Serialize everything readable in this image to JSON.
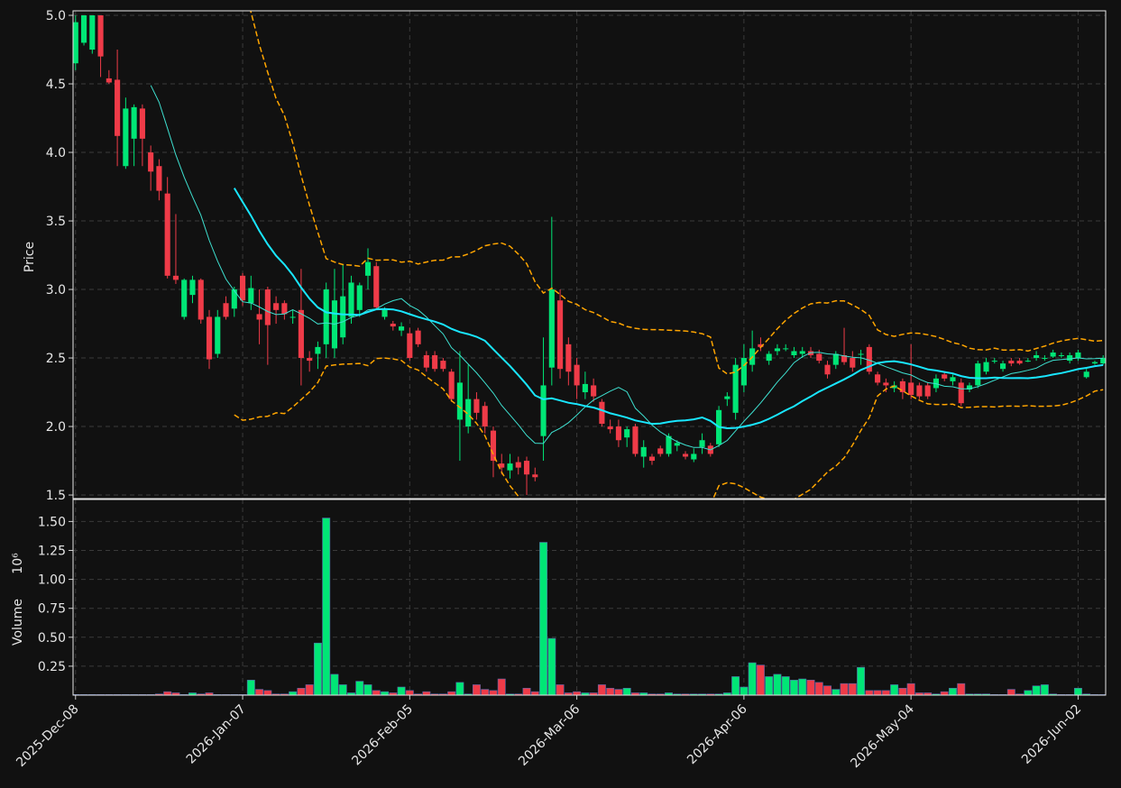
{
  "chart_data": {
    "type": "candlestick",
    "y_label": "Price",
    "y2_label": "Volume",
    "y2_scale_label": "10⁶",
    "up_color": "#00e676",
    "down_color": "#ef3b48",
    "grid": true,
    "xlim": [
      -0.3,
      123.3
    ],
    "ylim": [
      1.474,
      5.033
    ],
    "yticks": [
      1.5,
      {
        "value": 2,
        "label": "2.0"
      },
      2.5,
      {
        "value": 3,
        "label": "3.0"
      },
      3.5,
      {
        "value": 4,
        "label": "4.0"
      },
      4.5,
      {
        "value": 5,
        "label": "5.0"
      }
    ],
    "y2lim": [
      0,
      1.69
    ],
    "y2ticks": [
      0.25,
      {
        "value": 0.5,
        "label": "0.50"
      },
      0.75,
      {
        "value": 1,
        "label": "1.00"
      },
      1.25,
      {
        "value": 1.5,
        "label": "1.50"
      }
    ],
    "categories": [
      "2025-Dec-08",
      null,
      null,
      null,
      null,
      null,
      null,
      null,
      null,
      null,
      null,
      null,
      null,
      null,
      null,
      null,
      null,
      null,
      null,
      null,
      "2026-Jan-07",
      null,
      null,
      null,
      null,
      null,
      null,
      null,
      null,
      null,
      null,
      null,
      null,
      null,
      null,
      null,
      null,
      null,
      null,
      null,
      "2026-Feb-05",
      null,
      null,
      null,
      null,
      null,
      null,
      null,
      null,
      null,
      null,
      null,
      null,
      null,
      null,
      null,
      null,
      null,
      null,
      null,
      "2026-Mar-06",
      null,
      null,
      null,
      null,
      null,
      null,
      null,
      null,
      null,
      null,
      null,
      null,
      null,
      null,
      null,
      null,
      null,
      null,
      null,
      "2026-Apr-06",
      null,
      null,
      null,
      null,
      null,
      null,
      null,
      null,
      null,
      null,
      null,
      null,
      null,
      null,
      null,
      null,
      null,
      null,
      null,
      "2026-May-04",
      null,
      null,
      null,
      null,
      null,
      null,
      null,
      null,
      null,
      null,
      null,
      null,
      null,
      null,
      null,
      null,
      null,
      null,
      null,
      "2026-Jun-02",
      null,
      null,
      null
    ],
    "open": [
      4.65,
      4.8,
      4.75,
      5.0,
      4.54,
      4.53,
      3.9,
      4.1,
      4.32,
      4.0,
      3.9,
      3.7,
      3.1,
      2.8,
      2.96,
      3.07,
      2.8,
      2.53,
      2.9,
      2.86,
      3.1,
      2.9,
      2.82,
      3.0,
      2.9,
      2.9,
      2.8,
      2.85,
      2.5,
      2.53,
      2.6,
      2.57,
      2.65,
      2.8,
      2.85,
      3.1,
      3.17,
      2.8,
      2.75,
      2.7,
      2.68,
      2.7,
      2.52,
      2.52,
      2.48,
      2.4,
      2.05,
      2.0,
      2.2,
      2.15,
      1.97,
      1.73,
      1.68,
      1.74,
      1.75,
      1.65,
      1.93,
      2.43,
      2.92,
      2.6,
      2.45,
      2.25,
      2.3,
      2.18,
      2.0,
      2.0,
      1.92,
      2.0,
      1.78,
      1.78,
      1.84,
      1.8,
      1.86,
      1.8,
      1.76,
      1.85,
      1.86,
      1.87,
      2.2,
      2.1,
      2.3,
      2.45,
      2.6,
      2.48,
      2.55,
      2.57,
      2.52,
      2.53,
      2.55,
      2.53,
      2.45,
      2.45,
      2.52,
      2.5,
      2.53,
      2.58,
      2.38,
      2.32,
      2.28,
      2.33,
      2.32,
      2.3,
      2.3,
      2.28,
      2.38,
      2.33,
      2.32,
      2.27,
      2.3,
      2.4,
      2.48,
      2.42,
      2.48,
      2.48,
      2.48,
      2.5,
      2.5,
      2.51,
      2.52,
      2.48,
      2.5,
      2.36,
      2.46,
      2.46
    ],
    "high": [
      5.0,
      5.0,
      5.0,
      5.0,
      4.6,
      4.75,
      4.4,
      4.35,
      4.35,
      4.05,
      3.95,
      3.82,
      3.55,
      3.08,
      3.1,
      3.08,
      2.85,
      2.85,
      2.95,
      3.02,
      3.12,
      3.1,
      3.0,
      3.02,
      2.95,
      2.92,
      2.85,
      3.15,
      2.55,
      2.62,
      3.05,
      3.15,
      3.18,
      3.1,
      3.05,
      3.3,
      3.2,
      2.87,
      2.77,
      2.76,
      2.72,
      2.72,
      2.55,
      2.55,
      2.5,
      2.42,
      2.55,
      2.45,
      2.25,
      2.18,
      2.0,
      1.8,
      1.8,
      1.78,
      1.78,
      1.7,
      2.65,
      3.53,
      3.0,
      2.65,
      2.5,
      2.4,
      2.35,
      2.2,
      2.05,
      2.05,
      2.0,
      2.02,
      1.9,
      1.8,
      1.86,
      1.95,
      1.9,
      1.82,
      1.84,
      1.95,
      1.88,
      2.15,
      2.25,
      2.5,
      2.6,
      2.7,
      2.65,
      2.55,
      2.6,
      2.6,
      2.58,
      2.58,
      2.58,
      2.56,
      2.48,
      2.55,
      2.72,
      2.55,
      2.56,
      2.6,
      2.4,
      2.35,
      2.33,
      2.35,
      2.6,
      2.32,
      2.32,
      2.38,
      2.4,
      2.38,
      2.35,
      2.32,
      2.48,
      2.5,
      2.5,
      2.48,
      2.5,
      2.5,
      2.5,
      2.55,
      2.52,
      2.56,
      2.54,
      2.54,
      2.56,
      2.42,
      2.48,
      2.52
    ],
    "low": [
      4.6,
      4.78,
      4.72,
      4.55,
      4.5,
      3.9,
      3.88,
      3.9,
      3.9,
      3.72,
      3.65,
      3.08,
      3.04,
      2.78,
      2.9,
      2.75,
      2.42,
      2.5,
      2.78,
      2.8,
      2.88,
      2.85,
      2.6,
      2.45,
      2.75,
      2.78,
      2.75,
      2.3,
      2.4,
      2.42,
      2.5,
      2.5,
      2.6,
      2.75,
      2.8,
      3.0,
      2.85,
      2.78,
      2.7,
      2.66,
      2.48,
      2.58,
      2.4,
      2.4,
      2.4,
      2.18,
      1.75,
      1.95,
      2.05,
      1.95,
      1.63,
      1.65,
      1.62,
      1.65,
      1.5,
      1.6,
      1.75,
      2.3,
      2.35,
      2.3,
      2.2,
      2.2,
      2.18,
      2.0,
      1.95,
      1.85,
      1.85,
      1.78,
      1.7,
      1.72,
      1.78,
      1.78,
      1.82,
      1.76,
      1.74,
      1.8,
      1.78,
      1.85,
      2.15,
      2.05,
      2.25,
      2.4,
      2.55,
      2.45,
      2.52,
      2.55,
      2.5,
      2.5,
      2.5,
      2.46,
      2.35,
      2.42,
      2.45,
      2.4,
      2.45,
      2.38,
      2.3,
      2.25,
      2.25,
      2.2,
      2.2,
      2.2,
      2.2,
      2.25,
      2.33,
      2.3,
      2.15,
      2.25,
      2.28,
      2.38,
      2.46,
      2.4,
      2.44,
      2.45,
      2.47,
      2.48,
      2.48,
      2.5,
      2.5,
      2.46,
      2.48,
      2.35,
      2.45,
      2.45
    ],
    "close": [
      4.95,
      5.0,
      5.0,
      4.7,
      4.51,
      4.12,
      4.32,
      4.33,
      4.1,
      3.86,
      3.72,
      3.1,
      3.07,
      3.07,
      3.07,
      2.78,
      2.49,
      2.8,
      2.8,
      3.0,
      2.92,
      3.01,
      2.78,
      2.74,
      2.85,
      2.82,
      2.8,
      2.5,
      2.48,
      2.58,
      3.0,
      2.92,
      2.95,
      3.05,
      3.03,
      3.2,
      2.87,
      2.85,
      2.73,
      2.73,
      2.5,
      2.6,
      2.43,
      2.42,
      2.42,
      2.2,
      2.32,
      2.2,
      2.1,
      2.0,
      1.75,
      1.7,
      1.73,
      1.7,
      1.65,
      1.63,
      2.3,
      3.0,
      2.42,
      2.4,
      2.3,
      2.31,
      2.22,
      2.02,
      1.98,
      1.9,
      1.98,
      1.8,
      1.85,
      1.75,
      1.8,
      1.93,
      1.88,
      1.78,
      1.8,
      1.9,
      1.8,
      2.12,
      2.22,
      2.45,
      2.5,
      2.57,
      2.58,
      2.53,
      2.57,
      2.57,
      2.55,
      2.55,
      2.52,
      2.48,
      2.38,
      2.53,
      2.47,
      2.43,
      2.53,
      2.4,
      2.32,
      2.3,
      2.3,
      2.25,
      2.23,
      2.22,
      2.22,
      2.35,
      2.35,
      2.36,
      2.17,
      2.3,
      2.46,
      2.47,
      2.48,
      2.46,
      2.46,
      2.46,
      2.48,
      2.52,
      2.5,
      2.54,
      2.52,
      2.52,
      2.54,
      2.4,
      2.47,
      2.5
    ],
    "volume": [
      0.005,
      0.005,
      0.005,
      0.005,
      0.005,
      0.005,
      0.005,
      0.005,
      0.005,
      0.005,
      0.01,
      0.03,
      0.02,
      0.005,
      0.02,
      0.01,
      0.02,
      0.005,
      0.005,
      0.005,
      0.005,
      0.13,
      0.05,
      0.04,
      0.01,
      0.01,
      0.03,
      0.06,
      0.09,
      0.45,
      1.53,
      0.18,
      0.09,
      0.02,
      0.12,
      0.09,
      0.04,
      0.03,
      0.02,
      0.07,
      0.04,
      0.01,
      0.03,
      0.01,
      0.01,
      0.03,
      0.11,
      0.01,
      0.09,
      0.05,
      0.04,
      0.14,
      0.01,
      0.01,
      0.06,
      0.03,
      1.32,
      0.49,
      0.09,
      0.02,
      0.03,
      0.02,
      0.02,
      0.09,
      0.06,
      0.05,
      0.06,
      0.02,
      0.02,
      0.01,
      0.01,
      0.02,
      0.01,
      0.01,
      0.01,
      0.01,
      0.01,
      0.01,
      0.02,
      0.16,
      0.07,
      0.28,
      0.26,
      0.16,
      0.18,
      0.16,
      0.13,
      0.14,
      0.13,
      0.11,
      0.08,
      0.05,
      0.1,
      0.1,
      0.24,
      0.04,
      0.04,
      0.04,
      0.09,
      0.06,
      0.1,
      0.02,
      0.02,
      0.01,
      0.03,
      0.06,
      0.1,
      0.01,
      0.01,
      0.01,
      0.005,
      0.005,
      0.05,
      0.01,
      0.04,
      0.08,
      0.09,
      0.01,
      0.005,
      0.005,
      0.06,
      0.01,
      0.005,
      0.005
    ],
    "indicators": [
      {
        "kind": "moving_average",
        "window": 10,
        "color": "#3ee0d0",
        "width": 1
      },
      {
        "kind": "moving_average",
        "window": 20,
        "color": "#19e6ff",
        "width": 2
      },
      {
        "kind": "bollinger",
        "window": 20,
        "std": 2,
        "color": "#ffa500",
        "width": 1.5
      }
    ]
  }
}
